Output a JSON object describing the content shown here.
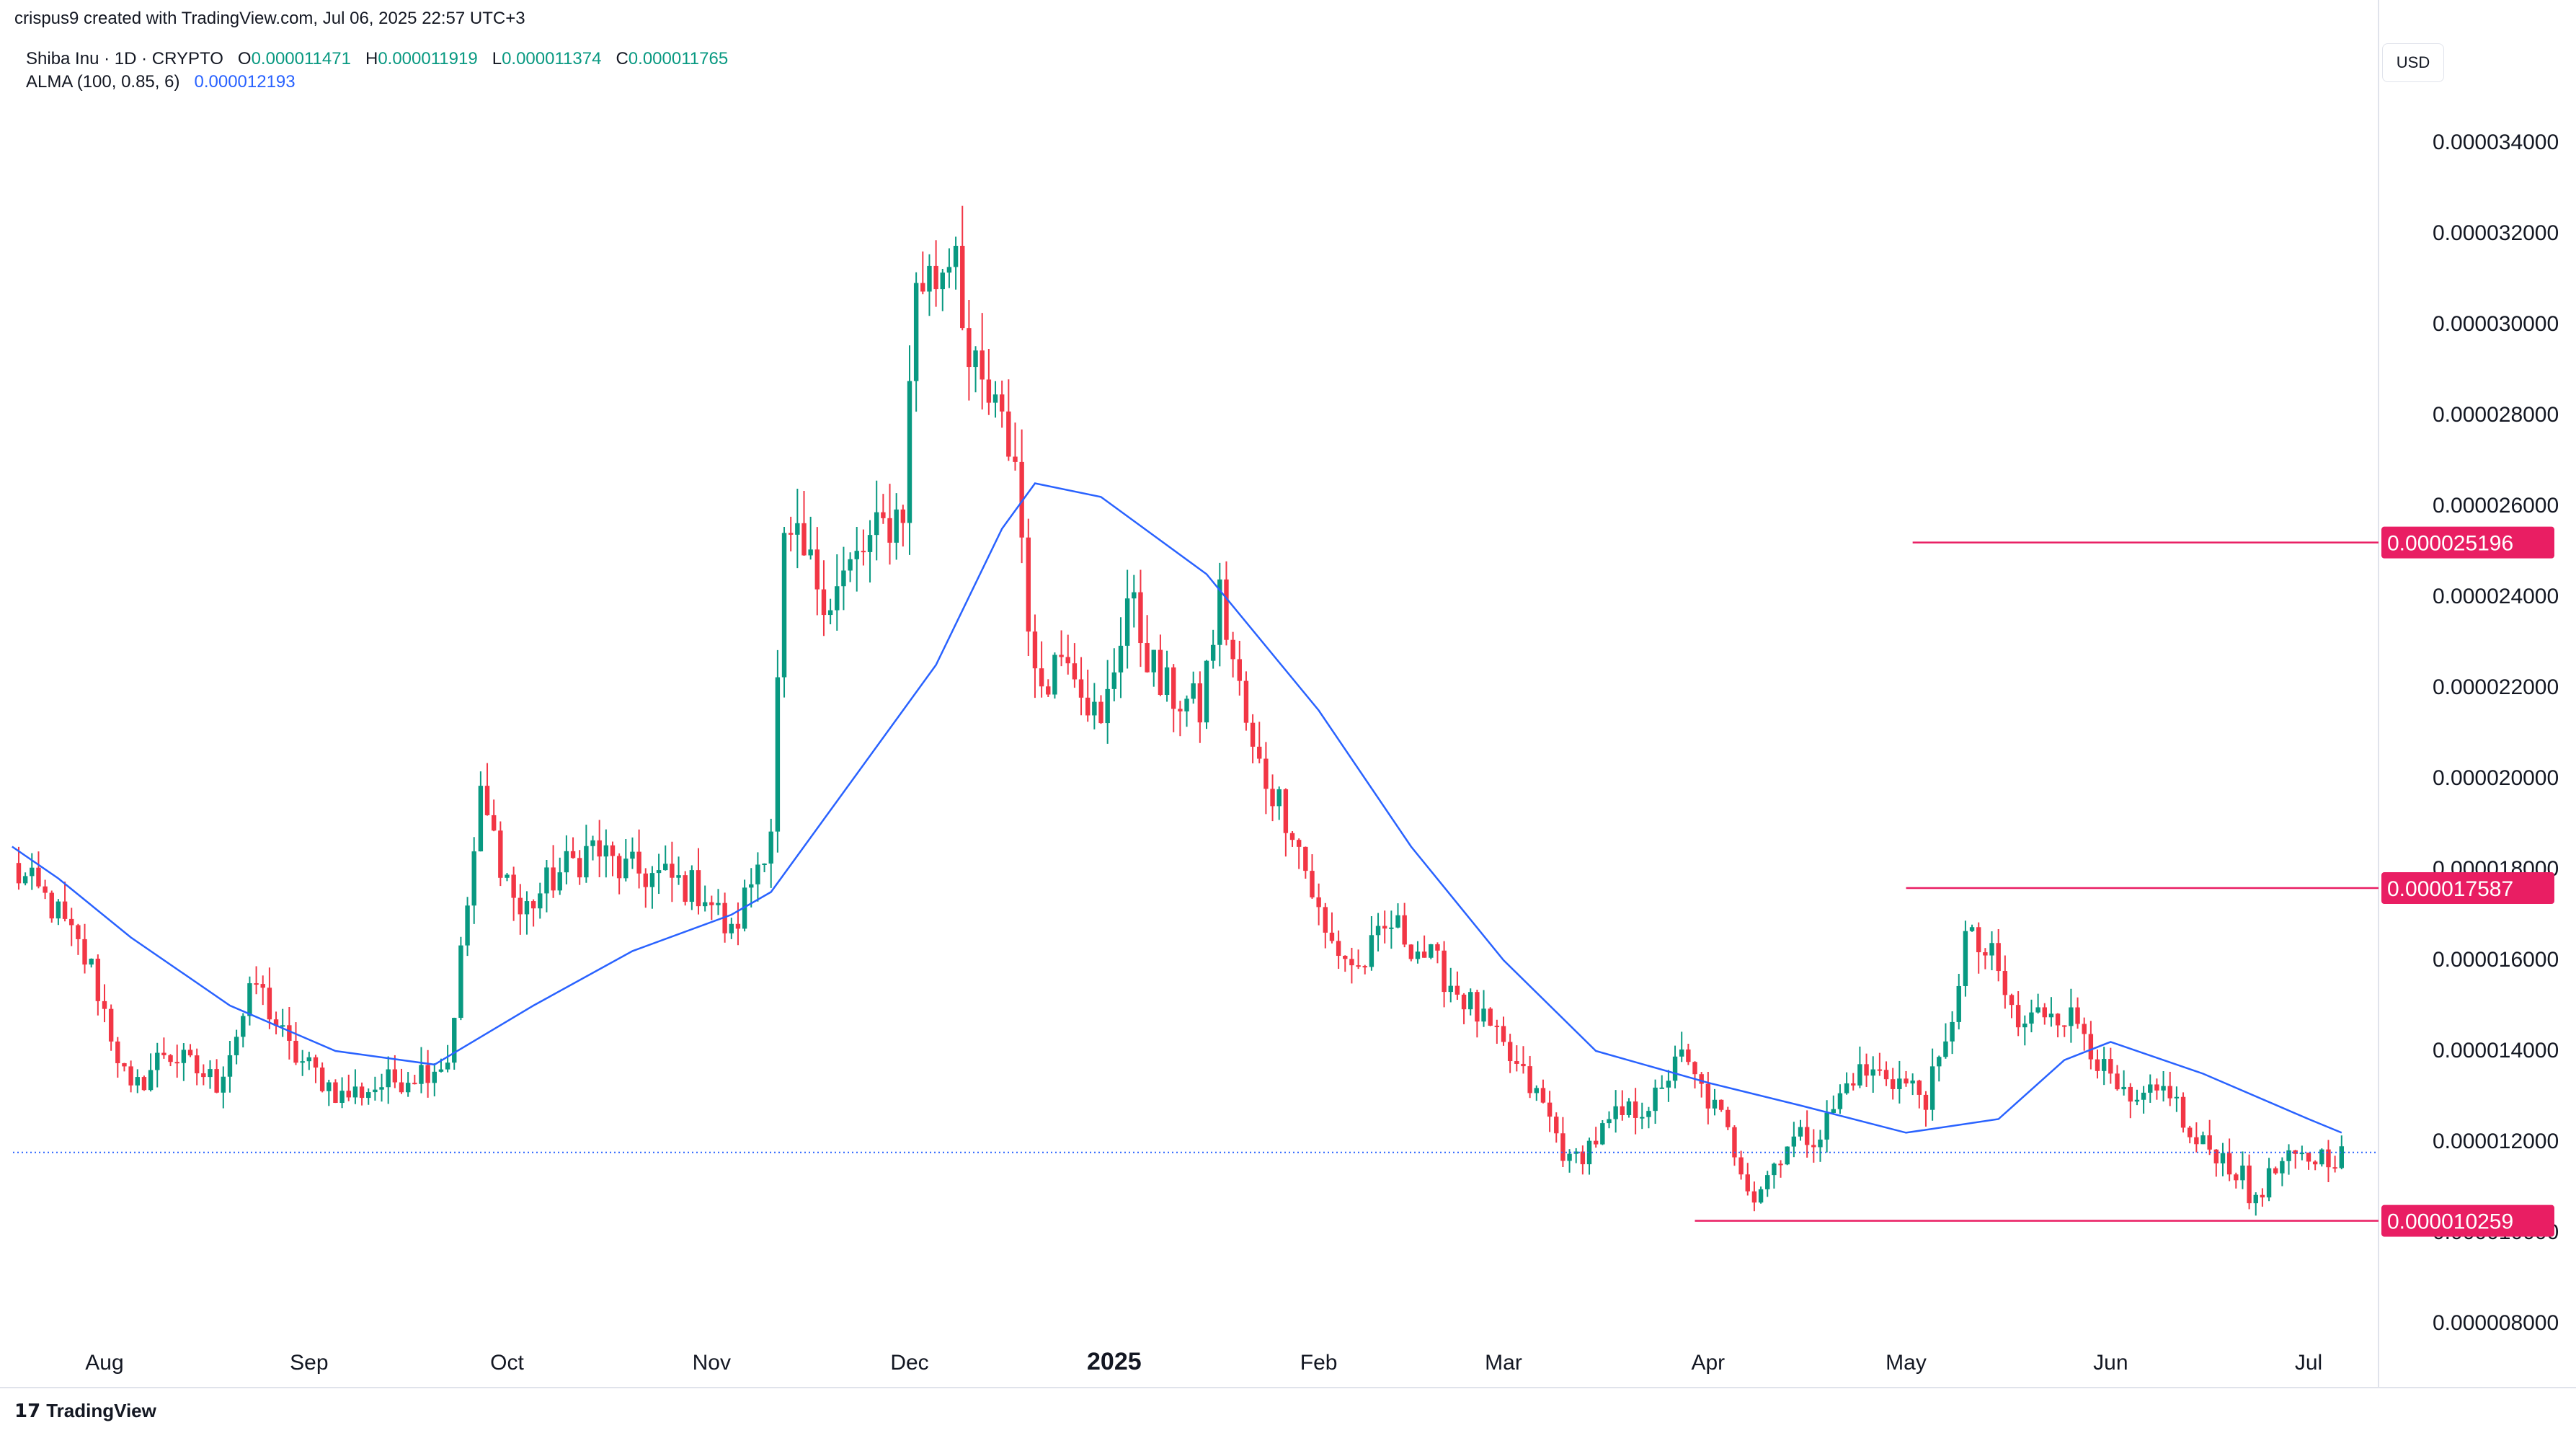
{
  "header": {
    "credit": "crispus9 created with TradingView.com, Jul 06, 2025 22:57 UTC+3",
    "symbol": "Shiba Inu · 1D · CRYPTO",
    "open_label": "O",
    "open": "0.000011471",
    "high_label": "H",
    "high": "0.000011919",
    "low_label": "L",
    "low": "0.000011374",
    "close_label": "C",
    "close": "0.000011765",
    "indicator": "ALMA (100, 0.85, 6)",
    "indicator_value": "0.000012193"
  },
  "currency": "USD",
  "branding": "TradingView",
  "colors": {
    "up": "#089981",
    "down": "#f23645",
    "alma": "#2962ff",
    "level": "#e91e63"
  },
  "chart_data": {
    "type": "candlestick",
    "title": "Shiba Inu · 1D · CRYPTO",
    "ylim": [
      7.2e-06,
      3.55e-05
    ],
    "y_ticks": [
      "0.000034000",
      "0.000032000",
      "0.000030000",
      "0.000028000",
      "0.000026000",
      "0.000024000",
      "0.000022000",
      "0.000020000",
      "0.000018000",
      "0.000016000",
      "0.000014000",
      "0.000012000",
      "0.000010000",
      "0.000008000"
    ],
    "x_ticks": [
      {
        "label": "Aug",
        "date": "2024-08-01",
        "bold": false
      },
      {
        "label": "Sep",
        "date": "2024-09-01",
        "bold": false
      },
      {
        "label": "Oct",
        "date": "2024-10-01",
        "bold": false
      },
      {
        "label": "Nov",
        "date": "2024-11-01",
        "bold": false
      },
      {
        "label": "Dec",
        "date": "2024-12-01",
        "bold": false
      },
      {
        "label": "2025",
        "date": "2025-01-01",
        "bold": true
      },
      {
        "label": "Feb",
        "date": "2025-02-01",
        "bold": false
      },
      {
        "label": "Mar",
        "date": "2025-03-01",
        "bold": false
      },
      {
        "label": "Apr",
        "date": "2025-04-01",
        "bold": false
      },
      {
        "label": "May",
        "date": "2025-05-01",
        "bold": false
      },
      {
        "label": "Jun",
        "date": "2025-06-01",
        "bold": false
      },
      {
        "label": "Jul",
        "date": "2025-07-01",
        "bold": false
      }
    ],
    "price_trajectory": [
      [
        "2024-07-18",
        1.8e-05
      ],
      [
        "2024-07-24",
        1.72e-05
      ],
      [
        "2024-07-30",
        1.58e-05
      ],
      [
        "2024-08-05",
        1.3e-05
      ],
      [
        "2024-08-10",
        1.4e-05
      ],
      [
        "2024-08-18",
        1.33e-05
      ],
      [
        "2024-08-24",
        1.55e-05
      ],
      [
        "2024-08-29",
        1.4e-05
      ],
      [
        "2024-09-06",
        1.3e-05
      ],
      [
        "2024-09-13",
        1.33e-05
      ],
      [
        "2024-09-22",
        1.38e-05
      ],
      [
        "2024-09-27",
        1.95e-05
      ],
      [
        "2024-10-03",
        1.7e-05
      ],
      [
        "2024-10-08",
        1.78e-05
      ],
      [
        "2024-10-14",
        1.85e-05
      ],
      [
        "2024-10-18",
        1.8e-05
      ],
      [
        "2024-10-25",
        1.78e-05
      ],
      [
        "2024-10-31",
        1.75e-05
      ],
      [
        "2024-11-04",
        1.65e-05
      ],
      [
        "2024-11-10",
        1.9e-05
      ],
      [
        "2024-11-12",
        2.5e-05
      ],
      [
        "2024-11-14",
        2.5e-05
      ],
      [
        "2024-11-19",
        2.4e-05
      ],
      [
        "2024-11-24",
        2.5e-05
      ],
      [
        "2024-11-30",
        2.6e-05
      ],
      [
        "2024-12-02",
        3.1e-05
      ],
      [
        "2024-12-05",
        3.1e-05
      ],
      [
        "2024-12-08",
        3.2e-05
      ],
      [
        "2024-12-10",
        2.9e-05
      ],
      [
        "2024-12-14",
        2.8e-05
      ],
      [
        "2024-12-17",
        2.7e-05
      ],
      [
        "2024-12-20",
        2.2e-05
      ],
      [
        "2024-12-25",
        2.3e-05
      ],
      [
        "2024-12-30",
        2.1e-05
      ],
      [
        "2025-01-03",
        2.4e-05
      ],
      [
        "2025-01-08",
        2.2e-05
      ],
      [
        "2025-01-14",
        2.15e-05
      ],
      [
        "2025-01-17",
        2.4e-05
      ],
      [
        "2025-01-22",
        2.05e-05
      ],
      [
        "2025-01-28",
        1.9e-05
      ],
      [
        "2025-02-02",
        1.65e-05
      ],
      [
        "2025-02-07",
        1.58e-05
      ],
      [
        "2025-02-12",
        1.68e-05
      ],
      [
        "2025-02-18",
        1.6e-05
      ],
      [
        "2025-02-24",
        1.5e-05
      ],
      [
        "2025-03-01",
        1.4e-05
      ],
      [
        "2025-03-07",
        1.28e-05
      ],
      [
        "2025-03-11",
        1.15e-05
      ],
      [
        "2025-03-18",
        1.25e-05
      ],
      [
        "2025-03-25",
        1.3e-05
      ],
      [
        "2025-03-27",
        1.4e-05
      ],
      [
        "2025-04-03",
        1.25e-05
      ],
      [
        "2025-04-08",
        1.08e-05
      ],
      [
        "2025-04-13",
        1.2e-05
      ],
      [
        "2025-04-18",
        1.22e-05
      ],
      [
        "2025-04-23",
        1.35e-05
      ],
      [
        "2025-04-28",
        1.35e-05
      ],
      [
        "2025-05-04",
        1.3e-05
      ],
      [
        "2025-05-07",
        1.4e-05
      ],
      [
        "2025-05-10",
        1.65e-05
      ],
      [
        "2025-05-14",
        1.6e-05
      ],
      [
        "2025-05-18",
        1.45e-05
      ],
      [
        "2025-05-23",
        1.5e-05
      ],
      [
        "2025-05-28",
        1.45e-05
      ],
      [
        "2025-05-31",
        1.35e-05
      ],
      [
        "2025-06-04",
        1.27e-05
      ],
      [
        "2025-06-10",
        1.32e-05
      ],
      [
        "2025-06-13",
        1.2e-05
      ],
      [
        "2025-06-17",
        1.18e-05
      ],
      [
        "2025-06-21",
        1.12e-05
      ],
      [
        "2025-06-22",
        1.07e-05
      ],
      [
        "2025-06-27",
        1.15e-05
      ],
      [
        "2025-07-03",
        1.17e-05
      ],
      [
        "2025-07-06",
        1.17e-05
      ]
    ],
    "alma_series": {
      "name": "ALMA (100, 0.85, 6)",
      "points": [
        [
          "2024-07-18",
          1.85e-05
        ],
        [
          "2024-07-25",
          1.78e-05
        ],
        [
          "2024-08-05",
          1.65e-05
        ],
        [
          "2024-08-20",
          1.5e-05
        ],
        [
          "2024-09-05",
          1.4e-05
        ],
        [
          "2024-09-20",
          1.37e-05
        ],
        [
          "2024-10-05",
          1.5e-05
        ],
        [
          "2024-10-20",
          1.62e-05
        ],
        [
          "2024-11-04",
          1.7e-05
        ],
        [
          "2024-11-10",
          1.75e-05
        ],
        [
          "2024-11-20",
          1.95e-05
        ],
        [
          "2024-12-05",
          2.25e-05
        ],
        [
          "2024-12-15",
          2.55e-05
        ],
        [
          "2024-12-20",
          2.65e-05
        ],
        [
          "2024-12-30",
          2.62e-05
        ],
        [
          "2025-01-15",
          2.45e-05
        ],
        [
          "2025-02-01",
          2.15e-05
        ],
        [
          "2025-02-15",
          1.85e-05
        ],
        [
          "2025-03-01",
          1.6e-05
        ],
        [
          "2025-03-15",
          1.4e-05
        ],
        [
          "2025-04-01",
          1.33e-05
        ],
        [
          "2025-04-15",
          1.28e-05
        ],
        [
          "2025-05-01",
          1.22e-05
        ],
        [
          "2025-05-15",
          1.25e-05
        ],
        [
          "2025-05-25",
          1.38e-05
        ],
        [
          "2025-06-01",
          1.42e-05
        ],
        [
          "2025-06-15",
          1.35e-05
        ],
        [
          "2025-07-01",
          1.25e-05
        ],
        [
          "2025-07-06",
          1.22e-05
        ]
      ]
    },
    "horizontal_levels": [
      {
        "value": 2.5196e-05,
        "label": "0.000025196",
        "from": "2025-05-02"
      },
      {
        "value": 1.7587e-05,
        "label": "0.000017587",
        "from": "2025-05-01"
      },
      {
        "value": 1.0259e-05,
        "label": "0.000010259",
        "from": "2025-03-30"
      }
    ],
    "current_price": 1.1765e-05
  }
}
